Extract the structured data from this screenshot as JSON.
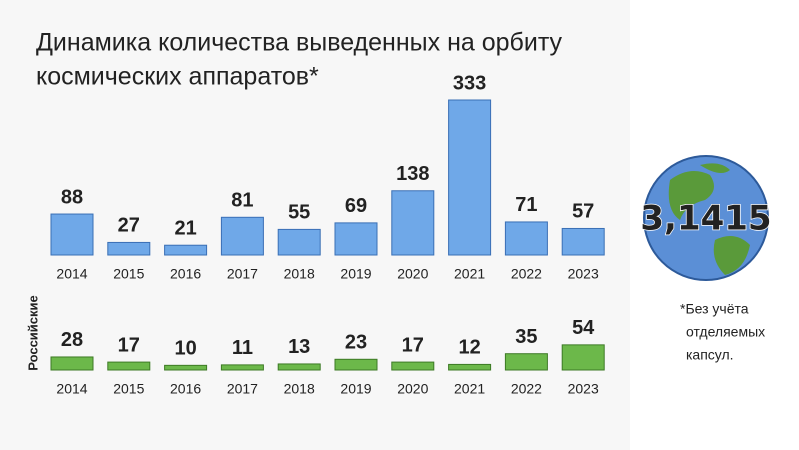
{
  "logo": "3,1415",
  "chart_data": [
    {
      "type": "bar",
      "title": "Динамика количества выведенных на орбиту",
      "subtitle": "космических аппаратов*",
      "annotations": [
        "*Без учёта",
        "отделяемых",
        "капсул."
      ],
      "categories": [
        "2014",
        "2015",
        "2016",
        "2017",
        "2018",
        "2019",
        "2020",
        "2021",
        "2022",
        "2023"
      ],
      "values": [
        88,
        27,
        21,
        81,
        55,
        69,
        138,
        333,
        71,
        57
      ],
      "color": "#6fa8e8"
    },
    {
      "type": "bar",
      "label": "Российские",
      "categories": [
        "2014",
        "2015",
        "2016",
        "2017",
        "2018",
        "2019",
        "2020",
        "2021",
        "2022",
        "2023"
      ],
      "values": [
        28,
        17,
        10,
        11,
        13,
        23,
        17,
        12,
        35,
        54
      ],
      "color": "#6cb84a"
    }
  ]
}
